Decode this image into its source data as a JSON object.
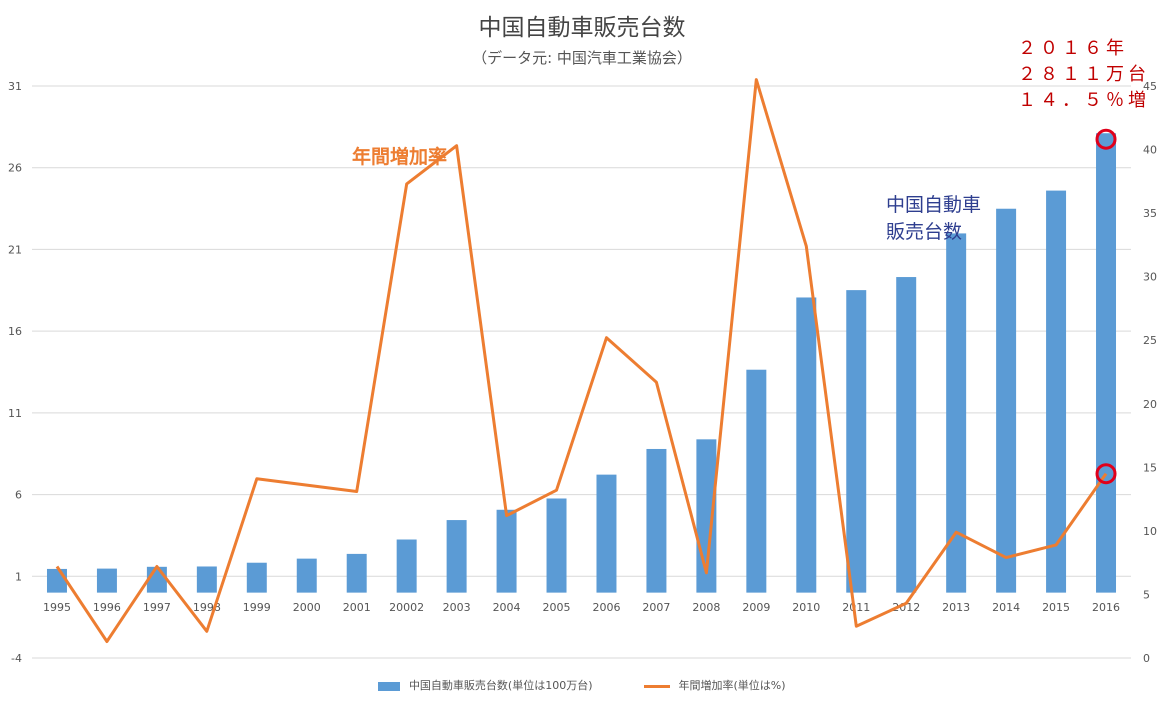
{
  "chart_data": {
    "type": "bar",
    "title": "中国自動車販売台数",
    "subtitle": "（データ元: 中国汽車工業協会）",
    "categories": [
      "1995",
      "1996",
      "1997",
      "1998",
      "1999",
      "2000",
      "2001",
      "20002",
      "2003",
      "2004",
      "2005",
      "2006",
      "2007",
      "2008",
      "2009",
      "2010",
      "2011",
      "2012",
      "2013",
      "2014",
      "2015",
      "2016"
    ],
    "series": [
      {
        "name": "中国自動車販売台数(単位は100万台)",
        "type": "bar",
        "axis": "left",
        "values": [
          1.45,
          1.47,
          1.58,
          1.6,
          1.83,
          2.08,
          2.37,
          3.25,
          4.44,
          5.07,
          5.76,
          7.22,
          8.79,
          9.38,
          13.64,
          18.06,
          18.51,
          19.31,
          21.98,
          23.49,
          24.6,
          28.11
        ]
      },
      {
        "name": "年間増加率(単位は%)",
        "type": "line",
        "axis": "right",
        "values": [
          7.2,
          1.3,
          7.2,
          2.1,
          14.1,
          13.6,
          13.1,
          37.3,
          40.3,
          11.2,
          13.2,
          25.2,
          21.7,
          6.7,
          45.5,
          32.4,
          2.5,
          4.3,
          9.9,
          7.9,
          8.9,
          14.5
        ]
      }
    ],
    "y_left": {
      "min": -4,
      "max": 31,
      "ticks": [
        -4,
        1,
        6,
        11,
        16,
        21,
        26,
        31
      ]
    },
    "y_right": {
      "min": 0,
      "max": 45,
      "ticks": [
        0,
        5,
        10,
        15,
        20,
        25,
        30,
        35,
        40,
        45
      ]
    },
    "grid": true,
    "legend_position": "bottom",
    "colors": {
      "bar": "#5B9BD5",
      "line": "#ED7D31",
      "highlight": "#E0001B"
    },
    "highlight_index": 21
  },
  "annotations": {
    "growth_label": "年間増加率",
    "sales_label_line1": "中国自動車",
    "sales_label_line2": "販売台数",
    "y2016_line1": "２０１６年",
    "y2016_line2": "２８１１万台",
    "y2016_line3": "１４．５％増"
  }
}
